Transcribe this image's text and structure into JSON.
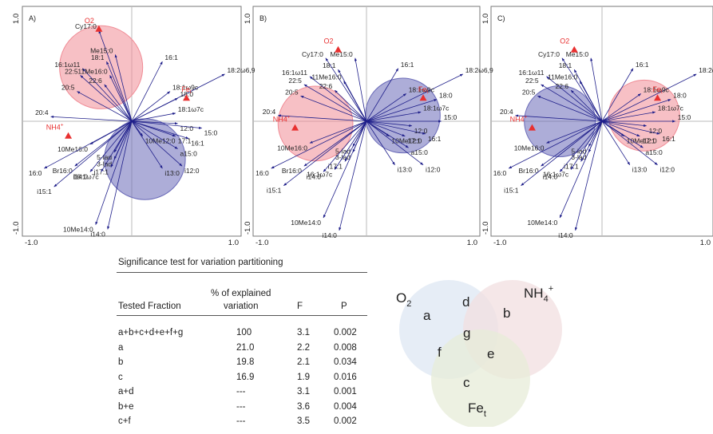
{
  "chart_data": [
    {
      "type": "scatter",
      "panel_label": "A)",
      "x_ticks": [
        "-1.0",
        "1.0"
      ],
      "y_ticks": [
        "1.0",
        "-1.0"
      ],
      "xlim": [
        -1,
        1
      ],
      "ylim": [
        -1,
        1
      ],
      "env_arrows": [
        {
          "label": "O2",
          "x": -0.3,
          "y": 0.8
        },
        {
          "label": "Fe",
          "sub": "t",
          "x": 0.5,
          "y": 0.2
        },
        {
          "label": "NH4",
          "sup": "+",
          "x": -0.58,
          "y": -0.13
        }
      ],
      "circles": [
        {
          "name": "O2",
          "cx": -0.28,
          "cy": 0.47,
          "r": 0.38,
          "color": "#f08c96"
        },
        {
          "name": "NH4+",
          "cx": 0.12,
          "cy": -0.33,
          "r": 0.37,
          "color": "#6a6ab8"
        }
      ],
      "species": [
        {
          "label": "Cy17:0",
          "x": -0.3,
          "y": 0.79
        },
        {
          "label": "Me15:0",
          "x": -0.15,
          "y": 0.58
        },
        {
          "label": "18:1",
          "x": -0.23,
          "y": 0.52
        },
        {
          "label": "16:1ω11",
          "x": -0.45,
          "y": 0.46
        },
        {
          "label": "11Me16:0",
          "x": -0.2,
          "y": 0.4
        },
        {
          "label": "22:5",
          "x": -0.47,
          "y": 0.4
        },
        {
          "label": "22:6",
          "x": -0.25,
          "y": 0.32
        },
        {
          "label": "20:5",
          "x": -0.5,
          "y": 0.26
        },
        {
          "label": "16:1",
          "x": 0.28,
          "y": 0.52
        },
        {
          "label": "18:2ω6,9",
          "x": 0.85,
          "y": 0.41
        },
        {
          "label": "18:1ω9c",
          "x": 0.35,
          "y": 0.26
        },
        {
          "label": "18:0",
          "x": 0.42,
          "y": 0.2
        },
        {
          "label": "18:1ω7c",
          "x": 0.4,
          "y": 0.07
        },
        {
          "label": "20:4",
          "x": -0.74,
          "y": 0.04
        },
        {
          "label": "12:0",
          "x": 0.42,
          "y": -0.02
        },
        {
          "label": "15:0",
          "x": 0.64,
          "y": -0.06
        },
        {
          "label": "10Me12:0",
          "x": 0.1,
          "y": -0.13
        },
        {
          "label": "17:1",
          "x": 0.4,
          "y": -0.13
        },
        {
          "label": "16:1",
          "x": 0.52,
          "y": -0.15
        },
        {
          "label": "10Me16:0",
          "x": -0.38,
          "y": -0.2
        },
        {
          "label": "5-lad",
          "x": -0.16,
          "y": -0.27
        },
        {
          "label": "3-lad",
          "x": -0.16,
          "y": -0.33
        },
        {
          "label": "a15:0",
          "x": 0.42,
          "y": -0.24
        },
        {
          "label": "16:0",
          "x": -0.8,
          "y": -0.41
        },
        {
          "label": "Br16:0",
          "x": -0.52,
          "y": -0.39
        },
        {
          "label": "i17:1",
          "x": -0.19,
          "y": -0.4
        },
        {
          "label": "16:1ω7c",
          "x": -0.28,
          "y": -0.44
        },
        {
          "label": "i14:0",
          "x": -0.38,
          "y": -0.44
        },
        {
          "label": "i13:0",
          "x": 0.28,
          "y": -0.41
        },
        {
          "label": "i12:0",
          "x": 0.46,
          "y": -0.39
        },
        {
          "label": "i15:1",
          "x": -0.71,
          "y": -0.57
        },
        {
          "label": "10Me14:0",
          "x": -0.33,
          "y": -0.9
        },
        {
          "label": "i14:0",
          "x": -0.22,
          "y": -0.94
        }
      ]
    },
    {
      "type": "scatter",
      "panel_label": "B)",
      "x_ticks": [
        "-1.0",
        "1.0"
      ],
      "y_ticks": [],
      "xlim": [
        -1,
        1
      ],
      "ylim": [
        -1,
        1
      ],
      "env_arrows": [
        {
          "label": "O2",
          "x": -0.25,
          "y": 0.62
        },
        {
          "label": "Fe",
          "sub": "t",
          "x": 0.5,
          "y": 0.2
        },
        {
          "label": "NH4",
          "sup": "+",
          "x": -0.63,
          "y": -0.06
        }
      ],
      "circles": [
        {
          "name": "NH4+",
          "cx": -0.45,
          "cy": -0.02,
          "r": 0.33,
          "color": "#f08c96"
        },
        {
          "name": "Fe",
          "cx": 0.32,
          "cy": 0.05,
          "r": 0.33,
          "color": "#6a6ab8"
        }
      ],
      "species": [
        {
          "label": "Cy17:0",
          "x": -0.36,
          "y": 0.55
        },
        {
          "label": "Me15:0",
          "x": -0.1,
          "y": 0.55
        },
        {
          "label": "18:1",
          "x": -0.25,
          "y": 0.45
        },
        {
          "label": "16:1ω11",
          "x": -0.5,
          "y": 0.39
        },
        {
          "label": "11Me16:0",
          "x": -0.2,
          "y": 0.35
        },
        {
          "label": "22:5",
          "x": -0.55,
          "y": 0.32
        },
        {
          "label": "22:6",
          "x": -0.28,
          "y": 0.27
        },
        {
          "label": "20:5",
          "x": -0.58,
          "y": 0.22
        },
        {
          "label": "16:1",
          "x": 0.28,
          "y": 0.46
        },
        {
          "label": "18:2ω6,9",
          "x": 0.85,
          "y": 0.41
        },
        {
          "label": "18:1ω9c",
          "x": 0.35,
          "y": 0.24
        },
        {
          "label": "18:0",
          "x": 0.62,
          "y": 0.19
        },
        {
          "label": "18:1ω7c",
          "x": 0.48,
          "y": 0.08
        },
        {
          "label": "20:4",
          "x": -0.78,
          "y": 0.05
        },
        {
          "label": "15:0",
          "x": 0.66,
          "y": 0.0
        },
        {
          "label": "12:0",
          "x": 0.4,
          "y": -0.04
        },
        {
          "label": "10Me12:0",
          "x": 0.2,
          "y": -0.13
        },
        {
          "label": "17:1",
          "x": 0.34,
          "y": -0.13
        },
        {
          "label": "16:1",
          "x": 0.52,
          "y": -0.11
        },
        {
          "label": "10Me16:0",
          "x": -0.5,
          "y": -0.19
        },
        {
          "label": "5-lad",
          "x": -0.12,
          "y": -0.22
        },
        {
          "label": "3-lad",
          "x": -0.12,
          "y": -0.27
        },
        {
          "label": "a15:0",
          "x": 0.37,
          "y": -0.23
        },
        {
          "label": "16:0",
          "x": -0.84,
          "y": -0.41
        },
        {
          "label": "Br16:0",
          "x": -0.55,
          "y": -0.39
        },
        {
          "label": "i17:1",
          "x": -0.19,
          "y": -0.35
        },
        {
          "label": "16:1ω7c",
          "x": -0.28,
          "y": -0.42
        },
        {
          "label": "i14:0",
          "x": -0.38,
          "y": -0.44
        },
        {
          "label": "i13:0",
          "x": 0.25,
          "y": -0.38
        },
        {
          "label": "i12:0",
          "x": 0.5,
          "y": -0.38
        },
        {
          "label": "i15:1",
          "x": -0.73,
          "y": -0.56
        },
        {
          "label": "10Me14:0",
          "x": -0.38,
          "y": -0.84
        },
        {
          "label": "i14:0",
          "x": -0.24,
          "y": -0.95
        }
      ]
    },
    {
      "type": "scatter",
      "panel_label": "C)",
      "x_ticks": [
        "-1.0",
        "1.0"
      ],
      "y_ticks": [],
      "xlim": [
        -1,
        1
      ],
      "ylim": [
        -1,
        1
      ],
      "env_arrows": [
        {
          "label": "O2",
          "x": -0.25,
          "y": 0.62
        },
        {
          "label": "Fe",
          "sub": "t",
          "x": 0.5,
          "y": 0.2
        },
        {
          "label": "NH4",
          "sup": "+",
          "x": -0.63,
          "y": -0.06
        }
      ],
      "circles": [
        {
          "name": "Fe",
          "cx": 0.38,
          "cy": 0.05,
          "r": 0.32,
          "color": "#f08c96"
        },
        {
          "name": "NH4+",
          "cx": -0.38,
          "cy": 0.0,
          "r": 0.32,
          "color": "#6a6ab8"
        }
      ],
      "species": [
        {
          "label": "Cy17:0",
          "x": -0.36,
          "y": 0.55
        },
        {
          "label": "Me15:0",
          "x": -0.1,
          "y": 0.55
        },
        {
          "label": "18:1",
          "x": -0.25,
          "y": 0.45
        },
        {
          "label": "16:1ω11",
          "x": -0.5,
          "y": 0.39
        },
        {
          "label": "11Me16:0",
          "x": -0.2,
          "y": 0.35
        },
        {
          "label": "22:5",
          "x": -0.55,
          "y": 0.32
        },
        {
          "label": "22:6",
          "x": -0.28,
          "y": 0.27
        },
        {
          "label": "20:5",
          "x": -0.58,
          "y": 0.22
        },
        {
          "label": "16:1",
          "x": 0.28,
          "y": 0.46
        },
        {
          "label": "18:2ω6,9",
          "x": 0.85,
          "y": 0.41
        },
        {
          "label": "18:1ω9c",
          "x": 0.35,
          "y": 0.24
        },
        {
          "label": "18:0",
          "x": 0.62,
          "y": 0.19
        },
        {
          "label": "18:1ω7c",
          "x": 0.48,
          "y": 0.08
        },
        {
          "label": "20:4",
          "x": -0.78,
          "y": 0.05
        },
        {
          "label": "15:0",
          "x": 0.66,
          "y": 0.0
        },
        {
          "label": "12:0",
          "x": 0.4,
          "y": -0.04
        },
        {
          "label": "10Me12:0",
          "x": 0.2,
          "y": -0.13
        },
        {
          "label": "17:1",
          "x": 0.34,
          "y": -0.13
        },
        {
          "label": "16:1",
          "x": 0.52,
          "y": -0.11
        },
        {
          "label": "10Me16:0",
          "x": -0.5,
          "y": -0.19
        },
        {
          "label": "5-lad",
          "x": -0.12,
          "y": -0.22
        },
        {
          "label": "3-lad",
          "x": -0.12,
          "y": -0.27
        },
        {
          "label": "a15:0",
          "x": 0.37,
          "y": -0.23
        },
        {
          "label": "16:0",
          "x": -0.84,
          "y": -0.41
        },
        {
          "label": "Br16:0",
          "x": -0.55,
          "y": -0.39
        },
        {
          "label": "i17:1",
          "x": -0.19,
          "y": -0.35
        },
        {
          "label": "16:1ω7c",
          "x": -0.28,
          "y": -0.42
        },
        {
          "label": "i14:0",
          "x": -0.38,
          "y": -0.44
        },
        {
          "label": "i13:0",
          "x": 0.25,
          "y": -0.38
        },
        {
          "label": "i12:0",
          "x": 0.5,
          "y": -0.38
        },
        {
          "label": "i15:1",
          "x": -0.73,
          "y": -0.56
        },
        {
          "label": "10Me14:0",
          "x": -0.38,
          "y": -0.84
        },
        {
          "label": "i14:0",
          "x": -0.24,
          "y": -0.95
        }
      ]
    },
    {
      "type": "table",
      "title": "Significance test for variation partitioning",
      "header": [
        "Tested Fraction",
        "% of explained",
        "variation",
        "F",
        "P"
      ],
      "rows": [
        [
          "a+b+c+d+e+f+g",
          "100",
          "3.1",
          "0.002"
        ],
        [
          "a",
          "21.0",
          "2.2",
          "0.008"
        ],
        [
          "b",
          "19.8",
          "2.1",
          "0.034"
        ],
        [
          "c",
          "16.9",
          "1.9",
          "0.016"
        ],
        [
          "a+d",
          "---",
          "3.1",
          "0.001"
        ],
        [
          "b+e",
          "---",
          "3.6",
          "0.004"
        ],
        [
          "c+f",
          "---",
          "3.5",
          "0.002"
        ]
      ]
    },
    {
      "type": "venn",
      "sets": [
        {
          "name": "O",
          "sub": "2",
          "color": "#dde7f3"
        },
        {
          "name": "NH",
          "sub": "4",
          "sup": "+",
          "color": "#f2dfe0"
        },
        {
          "name": "Fe",
          "sub": "t",
          "color": "#e7ecd8"
        }
      ],
      "regions": [
        "a",
        "b",
        "c",
        "d",
        "e",
        "f",
        "g"
      ]
    }
  ],
  "colors": {
    "arrow": "#1f1f8a",
    "env": "#e83030",
    "axis_line": "#bbbbbb"
  }
}
